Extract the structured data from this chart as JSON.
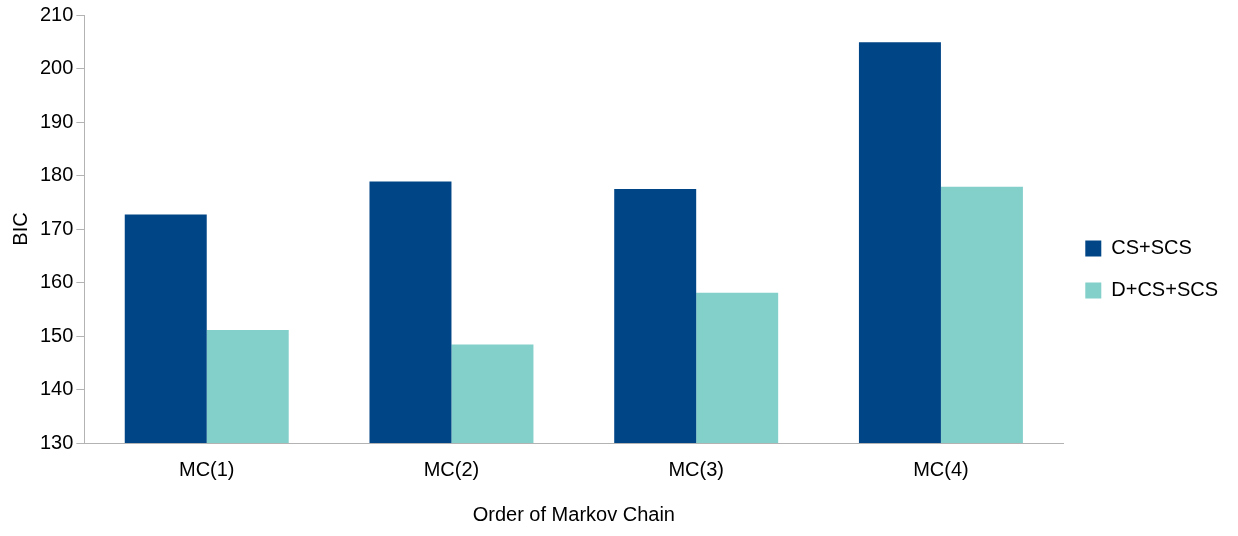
{
  "chart_data": {
    "type": "bar",
    "xlabel": "Order of Markov Chain",
    "ylabel": "BIC",
    "categories": [
      "MC(1)",
      "MC(2)",
      "MC(3)",
      "MC(4)"
    ],
    "series": [
      {
        "name": "CS+SCS",
        "color": "#004586",
        "values": [
          172.7,
          178.9,
          177.5,
          204.9
        ]
      },
      {
        "name": "D+CS+SCS",
        "color": "#83cfca",
        "values": [
          151.1,
          148.4,
          158.1,
          177.9
        ]
      }
    ],
    "ylim": [
      130,
      210
    ],
    "yticks": [
      130,
      140,
      150,
      160,
      170,
      180,
      190,
      200,
      210
    ],
    "grid": false,
    "legend": "right"
  }
}
